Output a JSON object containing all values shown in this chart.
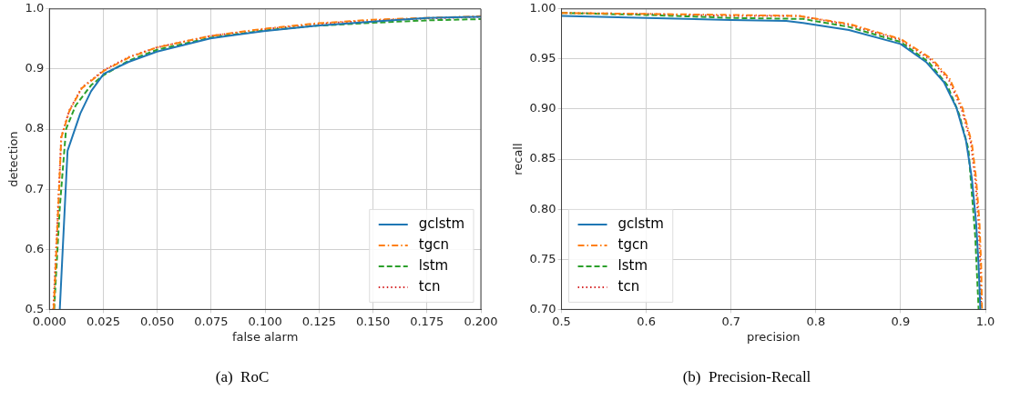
{
  "chart_data": [
    {
      "type": "line",
      "title": "(a)  RoC",
      "xlabel": "false alarm",
      "ylabel": "detection",
      "xlim": [
        0,
        0.2
      ],
      "ylim": [
        0.5,
        1.0
      ],
      "xticks": [
        {
          "value": 0,
          "label": "0.000"
        },
        {
          "value": 0.025,
          "label": "0.025"
        },
        {
          "value": 0.05,
          "label": "0.050"
        },
        {
          "value": 0.075,
          "label": "0.075"
        },
        {
          "value": 0.1,
          "label": "0.100"
        },
        {
          "value": 0.125,
          "label": "0.125"
        },
        {
          "value": 0.15,
          "label": "0.150"
        },
        {
          "value": 0.175,
          "label": "0.175"
        },
        {
          "value": 0.2,
          "label": "0.200"
        }
      ],
      "yticks": [
        {
          "value": 0.5,
          "label": "0.5"
        },
        {
          "value": 0.6,
          "label": "0.6"
        },
        {
          "value": 0.7,
          "label": "0.7"
        },
        {
          "value": 0.8,
          "label": "0.8"
        },
        {
          "value": 0.9,
          "label": "0.9"
        },
        {
          "value": 1.0,
          "label": "1.0"
        }
      ],
      "grid": true,
      "legend": "bottom right",
      "marker": "none",
      "series": [
        {
          "name": "gclstm",
          "color": "#1f77b4",
          "line_style": "solid",
          "x": [
            0.0048,
            0.0084,
            0.0143,
            0.0193,
            0.0252,
            0.0368,
            0.0499,
            0.0746,
            0.0993,
            0.124,
            0.15,
            0.175,
            0.2
          ],
          "values": [
            0.5,
            0.764,
            0.826,
            0.863,
            0.892,
            0.912,
            0.929,
            0.951,
            0.963,
            0.972,
            0.979,
            0.985,
            0.987
          ]
        },
        {
          "name": "tgcn",
          "color": "#ff7f0e",
          "line_style": "dashdot",
          "x": [
            0.002,
            0.0041,
            0.0055,
            0.0092,
            0.015,
            0.0252,
            0.0368,
            0.0499,
            0.0746,
            0.0993,
            0.124,
            0.15,
            0.175,
            0.2
          ],
          "values": [
            0.5,
            0.67,
            0.786,
            0.83,
            0.868,
            0.897,
            0.919,
            0.936,
            0.955,
            0.967,
            0.976,
            0.982,
            0.985,
            0.988
          ]
        },
        {
          "name": "lstm",
          "color": "#2ca02c",
          "line_style": "dashed",
          "x": [
            0.0022,
            0.0048,
            0.0077,
            0.0121,
            0.0193,
            0.0252,
            0.0368,
            0.0499,
            0.0746,
            0.0993,
            0.124,
            0.15,
            0.175,
            0.2
          ],
          "values": [
            0.5,
            0.67,
            0.8,
            0.839,
            0.873,
            0.89,
            0.914,
            0.932,
            0.952,
            0.964,
            0.972,
            0.977,
            0.981,
            0.983
          ]
        },
        {
          "name": "tcn",
          "color": "#d62728",
          "line_style": "dotted",
          "x": [
            0.0018,
            0.004,
            0.0055,
            0.0092,
            0.015,
            0.0252,
            0.0368,
            0.0499,
            0.0746,
            0.0993,
            0.124,
            0.15,
            0.175,
            0.2
          ],
          "values": [
            0.5,
            0.67,
            0.787,
            0.831,
            0.869,
            0.898,
            0.92,
            0.936,
            0.955,
            0.966,
            0.975,
            0.981,
            0.984,
            0.987
          ]
        }
      ]
    },
    {
      "type": "line",
      "title": "(b)  Precision-Recall",
      "xlabel": "precision",
      "ylabel": "recall",
      "xlim": [
        0.5,
        1.0
      ],
      "ylim": [
        0.7,
        1.0
      ],
      "xticks": [
        {
          "value": 0.5,
          "label": "0.5"
        },
        {
          "value": 0.6,
          "label": "0.6"
        },
        {
          "value": 0.7,
          "label": "0.7"
        },
        {
          "value": 0.8,
          "label": "0.8"
        },
        {
          "value": 0.9,
          "label": "0.9"
        },
        {
          "value": 1.0,
          "label": "1.0"
        }
      ],
      "yticks": [
        {
          "value": 0.7,
          "label": "0.70"
        },
        {
          "value": 0.75,
          "label": "0.75"
        },
        {
          "value": 0.8,
          "label": "0.80"
        },
        {
          "value": 0.85,
          "label": "0.85"
        },
        {
          "value": 0.9,
          "label": "0.90"
        },
        {
          "value": 0.95,
          "label": "0.95"
        },
        {
          "value": 1.0,
          "label": "1.00"
        }
      ],
      "grid": true,
      "legend": "bottom left",
      "marker": "none",
      "series": [
        {
          "name": "gclstm",
          "color": "#1f77b4",
          "line_style": "solid",
          "x": [
            0.5,
            0.6,
            0.7,
            0.765,
            0.785,
            0.839,
            0.9,
            0.93,
            0.951,
            0.966,
            0.977,
            0.984,
            0.989,
            0.992,
            0.994
          ],
          "values": [
            0.993,
            0.991,
            0.989,
            0.988,
            0.986,
            0.979,
            0.965,
            0.947,
            0.927,
            0.901,
            0.869,
            0.831,
            0.787,
            0.744,
            0.7
          ]
        },
        {
          "name": "tgcn",
          "color": "#ff7f0e",
          "line_style": "dashdot",
          "x": [
            0.5,
            0.6,
            0.7,
            0.78,
            0.839,
            0.9,
            0.937,
            0.958,
            0.973,
            0.984,
            0.989,
            0.993,
            0.995,
            0.996
          ],
          "values": [
            0.996,
            0.995,
            0.994,
            0.993,
            0.985,
            0.97,
            0.95,
            0.93,
            0.901,
            0.866,
            0.831,
            0.787,
            0.744,
            0.7
          ]
        },
        {
          "name": "lstm",
          "color": "#2ca02c",
          "line_style": "dashed",
          "x": [
            0.5,
            0.6,
            0.7,
            0.785,
            0.839,
            0.9,
            0.933,
            0.955,
            0.969,
            0.98,
            0.984,
            0.988,
            0.992
          ],
          "values": [
            0.996,
            0.994,
            0.991,
            0.99,
            0.982,
            0.967,
            0.947,
            0.924,
            0.895,
            0.86,
            0.816,
            0.773,
            0.7
          ]
        },
        {
          "name": "tcn",
          "color": "#d62728",
          "line_style": "dotted",
          "x": [
            0.5,
            0.6,
            0.7,
            0.78,
            0.839,
            0.9,
            0.936,
            0.957,
            0.972,
            0.983,
            0.988,
            0.992,
            0.994,
            0.995
          ],
          "values": [
            0.996,
            0.995,
            0.993,
            0.993,
            0.984,
            0.969,
            0.949,
            0.929,
            0.9,
            0.866,
            0.83,
            0.786,
            0.743,
            0.7
          ]
        }
      ]
    }
  ]
}
